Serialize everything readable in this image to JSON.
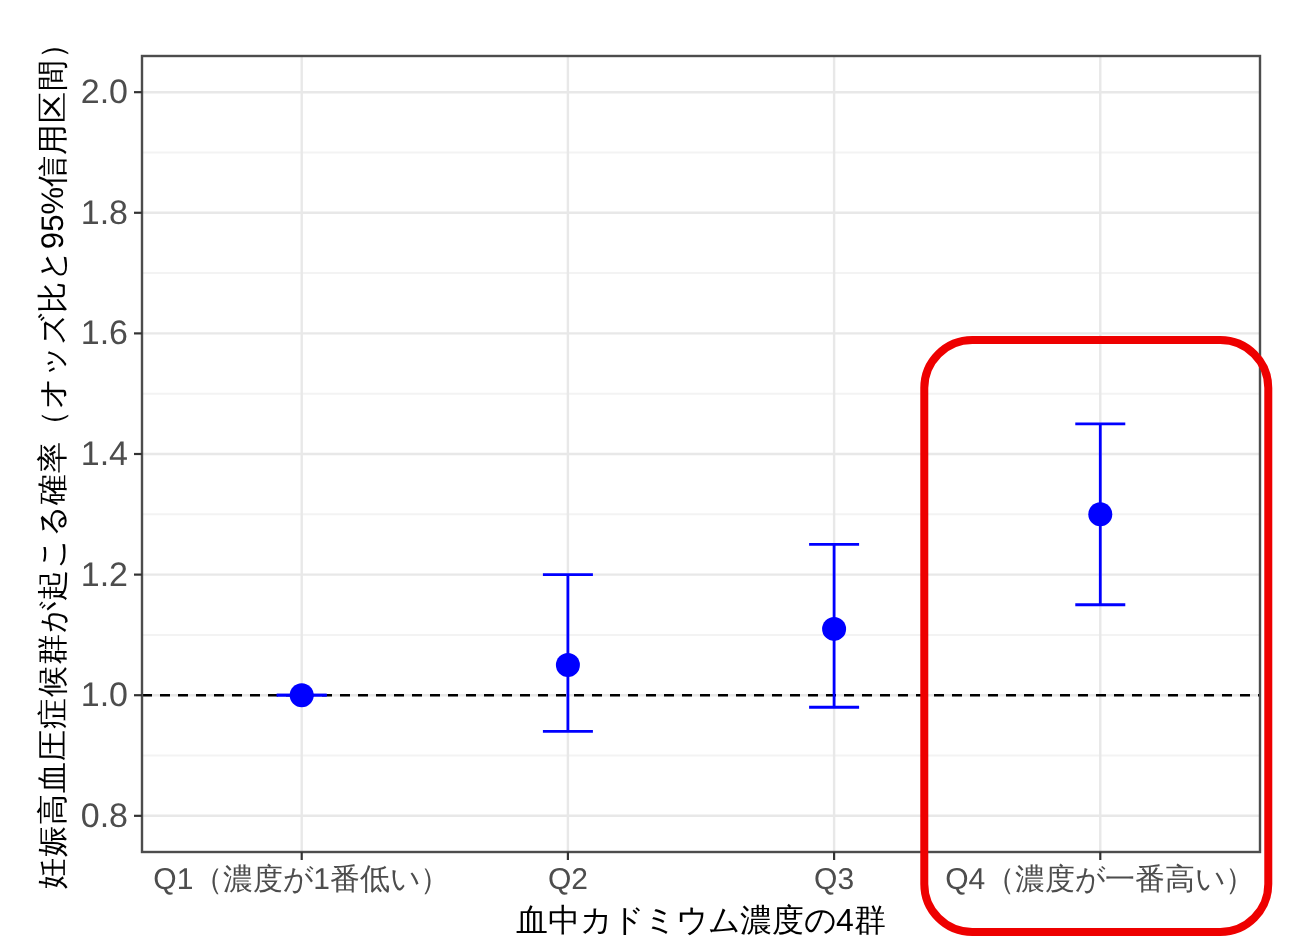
{
  "chart_data": {
    "type": "scatter",
    "xlabel": "血中カドミウム濃度の4群",
    "ylabel": "妊娠高血圧症候群が起こる確率（オッズ比と95%信用区間）",
    "categories": [
      "Q1（濃度が1番低い）",
      "Q2",
      "Q3",
      "Q4（濃度が一番高い）"
    ],
    "series": [
      {
        "color": "#0000ff",
        "values": [
          1,
          1.05,
          1.11,
          1.3
        ],
        "errors": [
          [
            1,
            1
          ],
          [
            0.94,
            1.2
          ],
          [
            0.98,
            1.25
          ],
          [
            1.15,
            1.45
          ]
        ]
      }
    ],
    "ylim": [
      0.74,
      2.06
    ],
    "yticks": [
      0.8,
      {
        "value": 1,
        "label": "1.0"
      },
      1.2,
      1.4,
      1.6,
      1.8,
      {
        "value": 2,
        "label": "2.0"
      }
    ],
    "ref_lines": [
      {
        "axis": "y",
        "value": 1,
        "line_style": "dashed",
        "color": "#000000"
      }
    ],
    "grid": true,
    "marker": "circle"
  }
}
